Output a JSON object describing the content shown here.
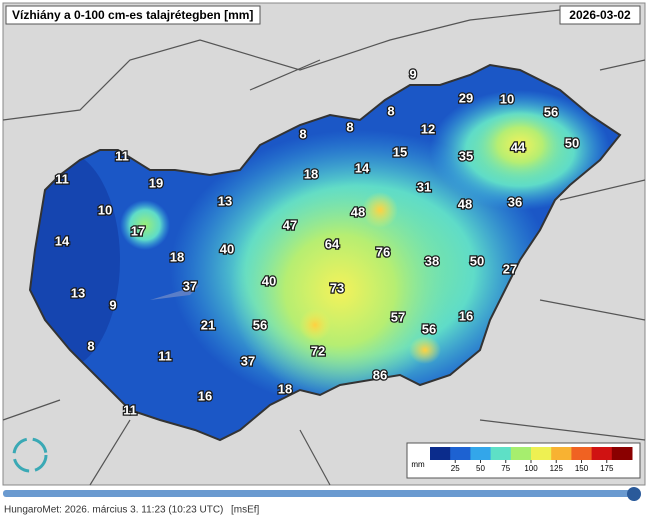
{
  "title": "Vízhiány a 0-100 cm-es talajrétegben [mm]",
  "date": "2026-03-02",
  "map_labels": [
    9,
    29,
    10,
    56,
    8,
    12,
    8,
    8,
    50,
    44,
    15,
    35,
    11,
    18,
    14,
    11,
    19,
    31,
    13,
    48,
    36,
    10,
    48,
    47,
    17,
    14,
    40,
    64,
    76,
    38,
    50,
    18,
    27,
    40,
    73,
    13,
    9,
    37,
    57,
    16,
    21,
    56,
    56,
    8,
    72,
    11,
    37,
    86,
    18,
    16,
    11
  ],
  "colorbar": {
    "unit": "mm",
    "lim": [
      0,
      200
    ],
    "ticks": [
      25,
      50,
      75,
      100,
      125,
      150,
      175
    ],
    "colors": [
      "#0b2c8c",
      "#1d62d2",
      "#33a6ea",
      "#5ee0c6",
      "#a6ee6e",
      "#eef052",
      "#f8b232",
      "#f06222",
      "#d01212",
      "#8a0000"
    ]
  },
  "footer": "HungaroMet: 2026. március 3. 11:23  (10:23  UTC)",
  "footer_tag": "[msEf]"
}
